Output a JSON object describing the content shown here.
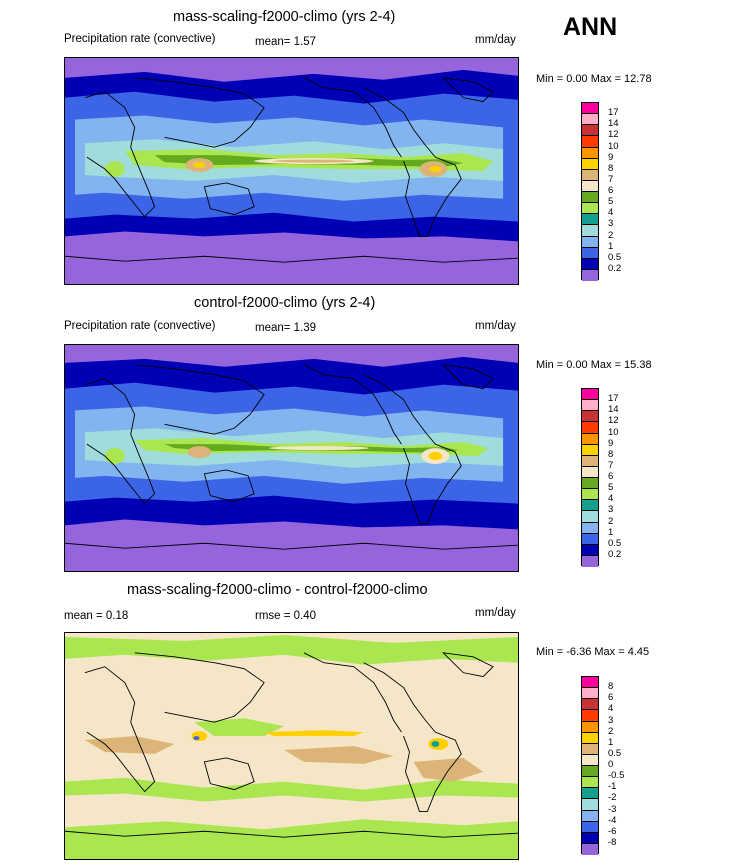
{
  "season": "ANN",
  "units": "mm/day",
  "panels": [
    {
      "id": "p1",
      "title": "mass-scaling-f2000-climo (yrs 2-4)",
      "left_label": "Precipitation rate (convective)",
      "stat_text": "mean=   1.57",
      "minmax": "Min =   0.00 Max =  12.78",
      "palette": "abs"
    },
    {
      "id": "p2",
      "title": "control-f2000-climo (yrs 2-4)",
      "left_label": "Precipitation rate (convective)",
      "stat_text": "mean=   1.39",
      "minmax": "Min =   0.00 Max =  15.38",
      "palette": "abs"
    },
    {
      "id": "p3",
      "title": "mass-scaling-f2000-climo - control-f2000-climo",
      "left_label": "mean =   0.18",
      "stat_text": "rmse =   0.40",
      "minmax": "Min =  -6.36 Max =   4.45",
      "palette": "diff"
    }
  ],
  "chart_data": [
    {
      "type": "heatmap",
      "title": "mass-scaling-f2000-climo (yrs 2-4)",
      "variable": "Precipitation rate (convective)",
      "units": "mm/day",
      "mean": 1.57,
      "min": 0.0,
      "max": 12.78,
      "levels": [
        0.2,
        0.5,
        1,
        2,
        3,
        4,
        5,
        6,
        7,
        8,
        9,
        10,
        12,
        14,
        17
      ],
      "level_labels": [
        "17",
        "14",
        "12",
        "10",
        "9",
        "8",
        "7",
        "6",
        "5",
        "4",
        "3",
        "2",
        "1",
        "0.5",
        "0.2"
      ],
      "colors": [
        "#ff00a0",
        "#ffb0c8",
        "#c83232",
        "#ff3c00",
        "#ff9600",
        "#ffd000",
        "#dcb478",
        "#f5e6c8",
        "#64aa1e",
        "#aae650",
        "#14a08c",
        "#a0dcdc",
        "#82b4f0",
        "#3c64e6",
        "#0000b4",
        "#9664dc"
      ]
    },
    {
      "type": "heatmap",
      "title": "control-f2000-climo (yrs 2-4)",
      "variable": "Precipitation rate (convective)",
      "units": "mm/day",
      "mean": 1.39,
      "min": 0.0,
      "max": 15.38,
      "levels": [
        0.2,
        0.5,
        1,
        2,
        3,
        4,
        5,
        6,
        7,
        8,
        9,
        10,
        12,
        14,
        17
      ],
      "level_labels": [
        "17",
        "14",
        "12",
        "10",
        "9",
        "8",
        "7",
        "6",
        "5",
        "4",
        "3",
        "2",
        "1",
        "0.5",
        "0.2"
      ],
      "colors": [
        "#ff00a0",
        "#ffb0c8",
        "#c83232",
        "#ff3c00",
        "#ff9600",
        "#ffd000",
        "#dcb478",
        "#f5e6c8",
        "#64aa1e",
        "#aae650",
        "#14a08c",
        "#a0dcdc",
        "#82b4f0",
        "#3c64e6",
        "#0000b4",
        "#9664dc"
      ]
    },
    {
      "type": "heatmap",
      "title": "mass-scaling-f2000-climo - control-f2000-climo",
      "units": "mm/day",
      "mean": 0.18,
      "rmse": 0.4,
      "min": -6.36,
      "max": 4.45,
      "levels": [
        -8,
        -6,
        -4,
        -3,
        -2,
        -1,
        -0.5,
        0,
        0.5,
        1,
        2,
        3,
        4,
        6,
        8
      ],
      "level_labels": [
        "8",
        "6",
        "4",
        "3",
        "2",
        "1",
        "0.5",
        "0",
        "-0.5",
        "-1",
        "-2",
        "-3",
        "-4",
        "-6",
        "-8"
      ],
      "colors": [
        "#ff00a0",
        "#ffb0c8",
        "#c83232",
        "#ff3c00",
        "#ff9600",
        "#ffd000",
        "#dcb478",
        "#f5e6c8",
        "#64aa1e",
        "#aae650",
        "#14a08c",
        "#a0dcdc",
        "#82b4f0",
        "#3c64e6",
        "#0000b4",
        "#9664dc"
      ]
    }
  ]
}
